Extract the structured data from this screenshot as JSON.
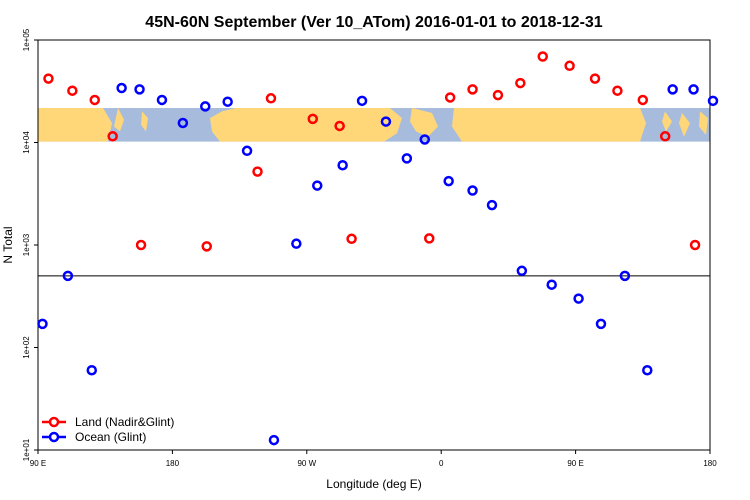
{
  "chart_data": {
    "type": "scatter",
    "title": "45N-60N September (Ver 10_ATom)   2016-01-01 to 2018-12-31",
    "xlabel": "Longitude (deg E)",
    "ylabel": "N Total",
    "x_ticks": [
      {
        "value": 90,
        "label": "90 E"
      },
      {
        "value": 180,
        "label": "180"
      },
      {
        "value": 270,
        "label": "90 W"
      },
      {
        "value": 360,
        "label": "0"
      },
      {
        "value": 450,
        "label": "90 E"
      },
      {
        "value": 540,
        "label": "180"
      }
    ],
    "y_ticks": [
      {
        "value": 10,
        "label": "1e+01"
      },
      {
        "value": 100,
        "label": "1e+02"
      },
      {
        "value": 1000,
        "label": "1e+03"
      },
      {
        "value": 10000,
        "label": "1e+04"
      },
      {
        "value": 100000,
        "label": "1e+05"
      }
    ],
    "xlim": [
      90,
      540
    ],
    "ylim": [
      10,
      100000
    ],
    "y_scale": "log",
    "reference_line_y": 500,
    "map_band": {
      "y_low": 10200,
      "y_high": 21700,
      "ocean_color": "#a7bcdc",
      "land_color": "#ffd779"
    },
    "series": [
      {
        "name": "Land (Nadir&Glint)",
        "color": "#ff0000",
        "points": [
          [
            97,
            42000
          ],
          [
            113,
            32000
          ],
          [
            128,
            26000
          ],
          [
            140,
            11500
          ],
          [
            159,
            1000
          ],
          [
            203,
            970
          ],
          [
            237,
            5200
          ],
          [
            246,
            27000
          ],
          [
            274,
            17000
          ],
          [
            292,
            14500
          ],
          [
            300,
            1150
          ],
          [
            352,
            1160
          ],
          [
            366,
            27500
          ],
          [
            381,
            33000
          ],
          [
            398,
            29000
          ],
          [
            413,
            38000
          ],
          [
            428,
            69000
          ],
          [
            446,
            56000
          ],
          [
            463,
            42000
          ],
          [
            478,
            32000
          ],
          [
            495,
            26000
          ],
          [
            510,
            11500
          ],
          [
            530,
            1000
          ]
        ]
      },
      {
        "name": "Ocean (Glint)",
        "color": "#0000ff",
        "points": [
          [
            93,
            170
          ],
          [
            110,
            500
          ],
          [
            126,
            60
          ],
          [
            146,
            34000
          ],
          [
            158,
            33000
          ],
          [
            173,
            26000
          ],
          [
            187,
            15500
          ],
          [
            202,
            22500
          ],
          [
            217,
            25000
          ],
          [
            230,
            8300
          ],
          [
            248,
            12.5
          ],
          [
            263,
            1030
          ],
          [
            277,
            3800
          ],
          [
            294,
            6000
          ],
          [
            307,
            25500
          ],
          [
            323,
            16000
          ],
          [
            337,
            7000
          ],
          [
            349,
            10700
          ],
          [
            365,
            4200
          ],
          [
            381,
            3400
          ],
          [
            394,
            2450
          ],
          [
            414,
            560
          ],
          [
            434,
            410
          ],
          [
            452,
            300
          ],
          [
            467,
            170
          ],
          [
            483,
            500
          ],
          [
            498,
            60
          ],
          [
            515,
            33000
          ],
          [
            529,
            33000
          ],
          [
            542,
            25500
          ]
        ]
      }
    ],
    "legend": {
      "position": "bottom-left",
      "entries": [
        "Land (Nadir&Glint)",
        "Ocean (Glint)"
      ]
    }
  }
}
